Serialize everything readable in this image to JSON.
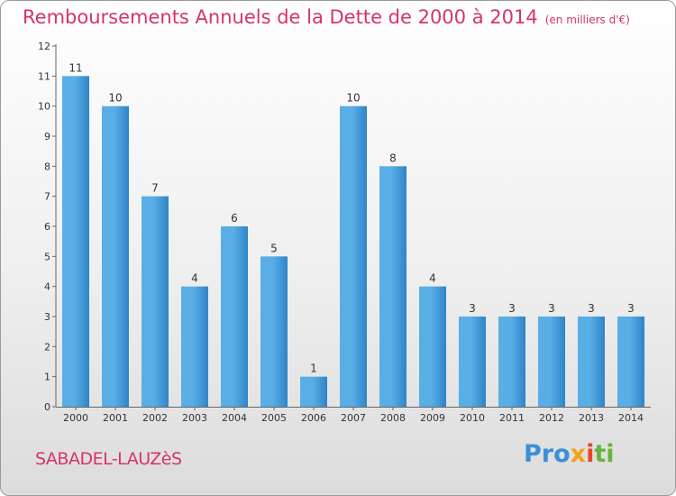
{
  "header": {
    "title": "Remboursements Annuels de la Dette de 2000 à 2014",
    "unit": "(en milliers d'€)"
  },
  "footer": {
    "commune": "SABADEL-LAUZèS",
    "logo_text": "Proxiti"
  },
  "colors": {
    "title": "#d6336b",
    "bar_light": "#5aaee6",
    "bar_dark": "#2f84c8"
  },
  "chart_data": {
    "type": "bar",
    "title": "Remboursements Annuels de la Dette de 2000 à 2014",
    "xlabel": "",
    "ylabel": "",
    "categories": [
      "2000",
      "2001",
      "2002",
      "2003",
      "2004",
      "2005",
      "2006",
      "2007",
      "2008",
      "2009",
      "2010",
      "2011",
      "2012",
      "2013",
      "2014"
    ],
    "values": [
      11,
      10,
      7,
      4,
      6,
      5,
      1,
      10,
      8,
      4,
      3,
      3,
      3,
      3,
      3
    ],
    "ylim": [
      0,
      12
    ],
    "yticks": [
      0,
      1,
      2,
      3,
      4,
      5,
      6,
      7,
      8,
      9,
      10,
      11,
      12
    ],
    "grid": false,
    "data_labels": true
  }
}
